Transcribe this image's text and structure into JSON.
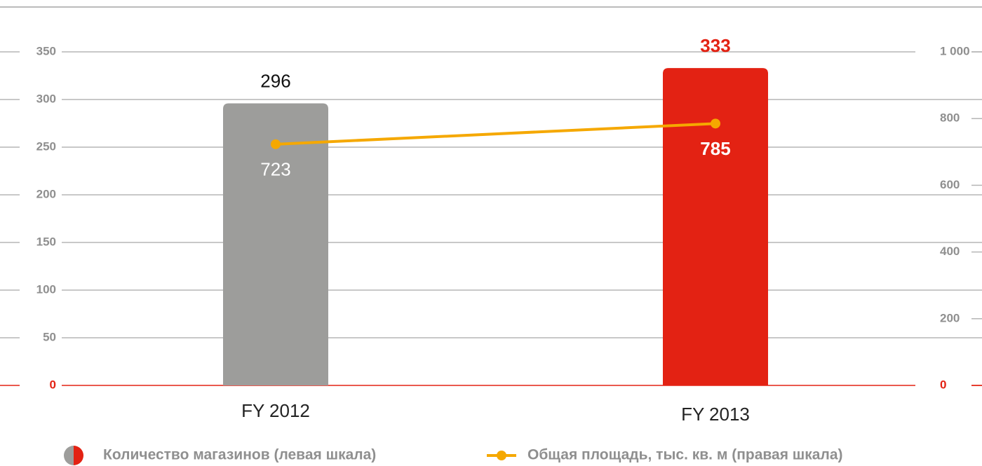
{
  "chart_data": {
    "type": "bar",
    "categories": [
      "FY 2012",
      "FY 2013"
    ],
    "series": [
      {
        "name": "Количество магазинов (левая шкала)",
        "type": "bar",
        "colors": [
          "#9d9d9b",
          "#e32213"
        ],
        "values": [
          296,
          333
        ]
      },
      {
        "name": "Общая площадь, тыс. кв. м (правая шкала)",
        "type": "line",
        "color": "#f5a800",
        "axis": "y2",
        "values": [
          723,
          785
        ]
      }
    ],
    "ylim": [
      0,
      350
    ],
    "yticks": [
      0,
      50,
      100,
      150,
      200,
      250,
      300,
      350
    ],
    "y2lim": [
      0,
      1000
    ],
    "y2ticks": [
      0,
      200,
      400,
      600,
      800,
      {
        "value": 1000,
        "label": "1 000"
      }
    ],
    "grid": true,
    "zero_color": "#e32213"
  }
}
